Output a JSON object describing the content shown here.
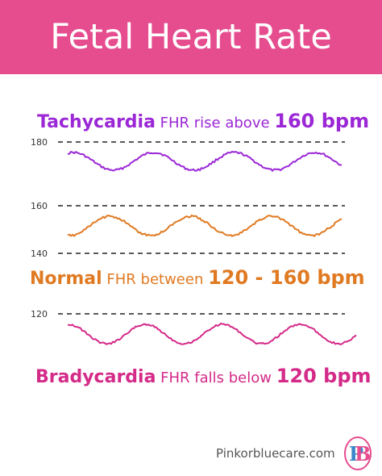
{
  "title": "Fetal Heart Rate",
  "sections": {
    "tachycardia": {
      "term": "Tachycardia",
      "desc": " FHR rise above ",
      "value": "160 bpm",
      "color": "#9b27d6"
    },
    "normal": {
      "term": "Normal",
      "desc": " FHR between ",
      "value": "120 - 160 bpm",
      "color": "#e07a22"
    },
    "bradycardia": {
      "term": "Bradycardia",
      "desc": " FHR falls below ",
      "value": "120 bpm",
      "color": "#d42a88"
    }
  },
  "reference_lines": [
    {
      "label": "180"
    },
    {
      "label": "160"
    },
    {
      "label": "140"
    },
    {
      "label": "120"
    }
  ],
  "website": "Pinkorbluecare.com",
  "logo": {
    "letters": [
      "P",
      "B"
    ]
  },
  "colors": {
    "banner": "#e64d8f",
    "tachycardia": "#9b27d6",
    "normal": "#e07a22",
    "bradycardia": "#d42a88",
    "logo_pink": "#e64d8f",
    "logo_blue": "#3a86c8"
  }
}
